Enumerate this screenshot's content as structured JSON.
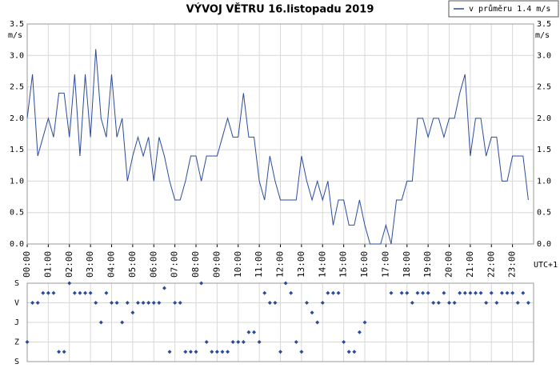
{
  "chart_data": [
    {
      "type": "line",
      "title": "VÝVOJ VĚTRU  16.listopadu 2019",
      "y_unit": "m/s",
      "x_note": "UTC+1",
      "legend": "top-right",
      "grid": true,
      "xlim": [
        0,
        24
      ],
      "xticks": [
        {
          "value": 0,
          "label": "00:00"
        },
        {
          "value": 1,
          "label": "01:00"
        },
        {
          "value": 2,
          "label": "02:00"
        },
        {
          "value": 3,
          "label": "03:00"
        },
        {
          "value": 4,
          "label": "04:00"
        },
        {
          "value": 5,
          "label": "05:00"
        },
        {
          "value": 6,
          "label": "06:00"
        },
        {
          "value": 7,
          "label": "07:00"
        },
        {
          "value": 8,
          "label": "08:00"
        },
        {
          "value": 9,
          "label": "09:00"
        },
        {
          "value": 10,
          "label": "10:00"
        },
        {
          "value": 11,
          "label": "11:00"
        },
        {
          "value": 12,
          "label": "12:00"
        },
        {
          "value": 13,
          "label": "13:00"
        },
        {
          "value": 14,
          "label": "14:00"
        },
        {
          "value": 15,
          "label": "15:00"
        },
        {
          "value": 16,
          "label": "16:00"
        },
        {
          "value": 17,
          "label": "17:00"
        },
        {
          "value": 18,
          "label": "18:00"
        },
        {
          "value": 19,
          "label": "19:00"
        },
        {
          "value": 20,
          "label": "20:00"
        },
        {
          "value": 21,
          "label": "21:00"
        },
        {
          "value": 22,
          "label": "22:00"
        },
        {
          "value": 23,
          "label": "23:00"
        }
      ],
      "ylim": [
        0,
        3.5
      ],
      "yticks": [
        {
          "value": 0,
          "label": "0.0"
        },
        {
          "value": 0.5,
          "label": "0.5"
        },
        {
          "value": 1,
          "label": "1.0"
        },
        {
          "value": 1.5,
          "label": "1.5"
        },
        {
          "value": 2,
          "label": "2.0"
        },
        {
          "value": 2.5,
          "label": "2.5"
        },
        {
          "value": 3,
          "label": "3.0"
        },
        {
          "value": 3.5,
          "label": "3.5"
        }
      ],
      "x": [
        0,
        0.25,
        0.5,
        0.75,
        1,
        1.25,
        1.5,
        1.75,
        2,
        2.25,
        2.5,
        2.75,
        3,
        3.25,
        3.5,
        3.75,
        4,
        4.25,
        4.5,
        4.75,
        5,
        5.25,
        5.5,
        5.75,
        6,
        6.25,
        6.5,
        6.75,
        7,
        7.25,
        7.5,
        7.75,
        8,
        8.25,
        8.5,
        8.75,
        9,
        9.25,
        9.5,
        9.75,
        10,
        10.25,
        10.5,
        10.75,
        11,
        11.25,
        11.5,
        11.75,
        12,
        12.25,
        12.5,
        12.75,
        13,
        13.25,
        13.5,
        13.75,
        14,
        14.25,
        14.5,
        14.75,
        15,
        15.25,
        15.5,
        15.75,
        16,
        16.25,
        16.5,
        16.75,
        17,
        17.25,
        17.5,
        17.75,
        18,
        18.25,
        18.5,
        18.75,
        19,
        19.25,
        19.5,
        19.75,
        20,
        20.25,
        20.5,
        20.75,
        21,
        21.25,
        21.5,
        21.75,
        22,
        22.25,
        22.5,
        22.75,
        23,
        23.25,
        23.5,
        23.75
      ],
      "series": [
        {
          "name": "v průměru 1.4 m/s",
          "color": "#2b4b9b",
          "values": [
            2.0,
            2.7,
            1.4,
            1.7,
            2.0,
            1.7,
            2.4,
            2.4,
            1.7,
            2.7,
            1.4,
            2.7,
            1.7,
            3.1,
            2.0,
            1.7,
            2.7,
            1.7,
            2.0,
            1.0,
            1.4,
            1.7,
            1.4,
            1.7,
            1.0,
            1.7,
            1.4,
            1.0,
            0.7,
            0.7,
            1.0,
            1.4,
            1.4,
            1.0,
            1.4,
            1.4,
            1.4,
            1.7,
            2.0,
            1.7,
            1.7,
            2.4,
            1.7,
            1.7,
            1.0,
            0.7,
            1.4,
            1.0,
            0.7,
            0.7,
            0.7,
            0.7,
            1.4,
            1.0,
            0.7,
            1.0,
            0.7,
            1.0,
            0.3,
            0.7,
            0.7,
            0.3,
            0.3,
            0.7,
            0.3,
            0.0,
            0.0,
            0.0,
            0.3,
            0.0,
            0.7,
            0.7,
            1.0,
            1.0,
            2.0,
            2.0,
            1.7,
            2.0,
            2.0,
            1.7,
            2.0,
            2.0,
            2.4,
            2.7,
            1.4,
            2.0,
            2.0,
            1.4,
            1.7,
            1.7,
            1.0,
            1.0,
            1.4,
            1.4,
            1.4,
            0.7
          ]
        }
      ]
    },
    {
      "type": "scatter",
      "grid": true,
      "color": "#2b4b9b",
      "xlim": [
        0,
        24
      ],
      "ylim": [
        0,
        360
      ],
      "yticks": [
        {
          "value": 0,
          "label": "S"
        },
        {
          "value": 90,
          "label": "V"
        },
        {
          "value": 180,
          "label": "J"
        },
        {
          "value": 270,
          "label": "Z"
        },
        {
          "value": 360,
          "label": "S"
        }
      ],
      "x": [
        0,
        0.25,
        0.5,
        0.75,
        1,
        1.25,
        1.5,
        1.75,
        2,
        2.25,
        2.5,
        2.75,
        3,
        3.25,
        3.5,
        3.75,
        4,
        4.25,
        4.5,
        4.75,
        5,
        5.25,
        5.5,
        5.75,
        6,
        6.25,
        6.5,
        6.75,
        7,
        7.25,
        7.5,
        7.75,
        8,
        8.25,
        8.5,
        8.75,
        9,
        9.25,
        9.5,
        9.75,
        10,
        10.25,
        10.5,
        10.75,
        11,
        11.25,
        11.5,
        11.75,
        12,
        12.25,
        12.5,
        12.75,
        13,
        13.25,
        13.5,
        13.75,
        14,
        14.25,
        14.5,
        14.75,
        15,
        15.25,
        15.5,
        15.75,
        16,
        17.25,
        17.75,
        18,
        18.25,
        18.5,
        18.75,
        19,
        19.25,
        19.5,
        19.75,
        20,
        20.25,
        20.5,
        20.75,
        21,
        21.25,
        21.5,
        21.75,
        22,
        22.25,
        22.5,
        22.75,
        23,
        23.25,
        23.5,
        23.75
      ],
      "values": [
        270,
        90,
        90,
        45,
        45,
        45,
        315,
        315,
        0,
        45,
        45,
        45,
        45,
        90,
        180,
        45,
        90,
        90,
        180,
        90,
        135,
        90,
        90,
        90,
        90,
        90,
        22.5,
        315,
        90,
        90,
        315,
        315,
        315,
        0,
        270,
        315,
        315,
        315,
        315,
        270,
        270,
        270,
        225,
        225,
        270,
        45,
        90,
        90,
        315,
        0,
        45,
        270,
        315,
        90,
        135,
        180,
        90,
        45,
        45,
        45,
        270,
        315,
        315,
        225,
        180,
        45,
        45,
        45,
        90,
        45,
        45,
        45,
        90,
        90,
        45,
        90,
        90,
        45,
        45,
        45,
        45,
        45,
        90,
        45,
        90,
        45,
        45,
        45,
        90,
        45,
        90
      ]
    }
  ]
}
